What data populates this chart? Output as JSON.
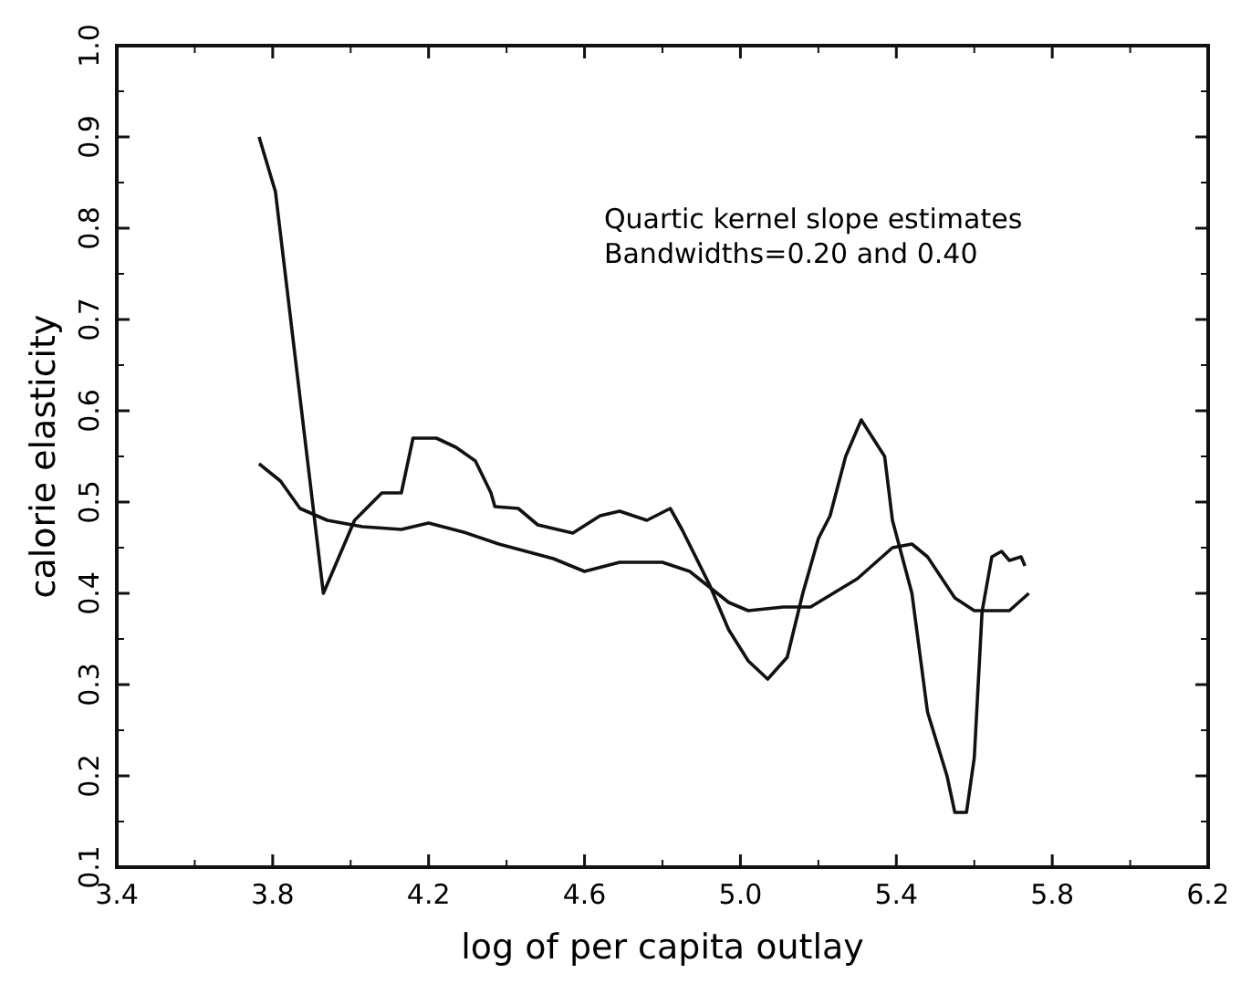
{
  "chart_data": {
    "type": "line",
    "xlabel": "log of per capita outlay",
    "ylabel": "calorie elasticity",
    "annotations": [
      "Quartic kernel slope estimates\nBandwidths=0.20 and 0.40"
    ],
    "xlim": [
      3.4,
      6.2
    ],
    "xticks": [
      3.4,
      3.8,
      4.2,
      4.6,
      {
        "value": 5,
        "label": "5.0"
      },
      5.4,
      5.8,
      6.2
    ],
    "ylim": [
      0.1,
      1.0
    ],
    "yticks": [
      0.1,
      0.2,
      0.3,
      0.4,
      0.5,
      0.6,
      0.7,
      0.8,
      0.9,
      {
        "value": 1,
        "label": "1.0"
      }
    ],
    "grid": false,
    "marker": "none",
    "line_style": "solid",
    "series": [
      {
        "color": "#111111",
        "x": [
          3.765,
          3.807,
          3.93,
          4.01,
          4.08,
          4.13,
          4.16,
          4.22,
          4.27,
          4.32,
          4.36,
          4.37,
          4.43,
          4.48,
          4.57,
          4.64,
          4.69,
          4.76,
          4.82,
          4.85,
          4.92,
          4.97,
          5.02,
          5.07,
          5.12,
          5.16,
          5.2,
          5.23,
          5.27,
          5.31,
          5.37,
          5.39,
          5.44,
          5.48,
          5.53,
          5.55,
          5.58,
          5.6,
          5.62,
          5.645,
          5.67,
          5.69,
          5.72,
          5.73
        ],
        "values": [
          0.9,
          0.84,
          0.4,
          0.48,
          0.51,
          0.51,
          0.57,
          0.57,
          0.56,
          0.545,
          0.51,
          0.495,
          0.493,
          0.475,
          0.466,
          0.485,
          0.49,
          0.48,
          0.493,
          0.47,
          0.41,
          0.36,
          0.326,
          0.306,
          0.33,
          0.4,
          0.46,
          0.485,
          0.55,
          0.59,
          0.55,
          0.48,
          0.4,
          0.27,
          0.2,
          0.16,
          0.16,
          0.22,
          0.38,
          0.44,
          0.446,
          0.436,
          0.44,
          0.43
        ]
      },
      {
        "color": "#111111",
        "x": [
          3.765,
          3.82,
          3.87,
          3.94,
          4.03,
          4.13,
          4.2,
          4.29,
          4.38,
          4.52,
          4.6,
          4.69,
          4.8,
          4.87,
          4.97,
          5.02,
          5.11,
          5.18,
          5.3,
          5.39,
          5.44,
          5.48,
          5.55,
          5.6,
          5.69,
          5.74
        ],
        "values": [
          0.542,
          0.523,
          0.493,
          0.48,
          0.473,
          0.47,
          0.477,
          0.467,
          0.454,
          0.438,
          0.424,
          0.434,
          0.434,
          0.424,
          0.39,
          0.381,
          0.385,
          0.385,
          0.416,
          0.45,
          0.454,
          0.44,
          0.395,
          0.381,
          0.381,
          0.4
        ]
      }
    ]
  }
}
